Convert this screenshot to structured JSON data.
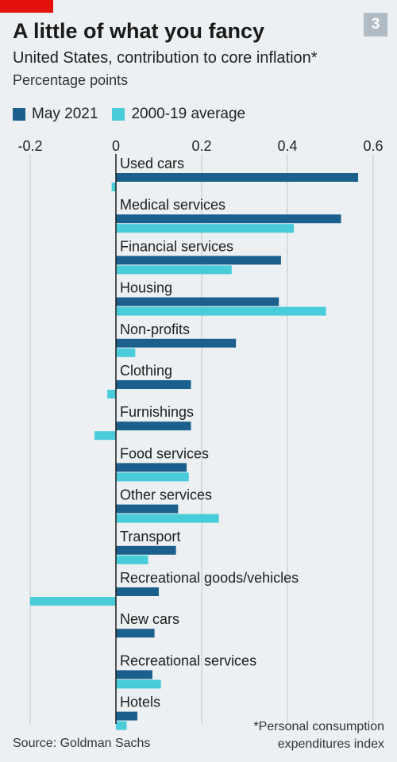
{
  "badge": "3",
  "colors": {
    "may2021": "#1b5f8c",
    "avg": "#49ccd9",
    "accent": "#e3120b",
    "grid": "#c6ced3"
  },
  "chart_data": {
    "type": "bar",
    "orientation": "horizontal",
    "title": "A little of what you fancy",
    "subtitle": "United States, contribution to core inflation*",
    "units": "Percentage points",
    "source": "Source: Goldman Sachs",
    "footnote_lines": [
      "*Personal consumption",
      "expenditures index"
    ],
    "xlim": [
      -0.2,
      0.6
    ],
    "ticks": [
      -0.2,
      0,
      0.2,
      0.4,
      0.6
    ],
    "tick_labels": [
      "-0.2",
      "0",
      "0.2",
      "0.4",
      "0.6"
    ],
    "legend_placement": "top-left",
    "grid": true,
    "categories": [
      "Used cars",
      "Medical services",
      "Financial services",
      "Housing",
      "Non-profits",
      "Clothing",
      "Furnishings",
      "Food services",
      "Other services",
      "Transport",
      "Recreational goods/vehicles",
      "New cars",
      "Recreational services",
      "Hotels"
    ],
    "series": [
      {
        "name": "May 2021",
        "values": [
          0.565,
          0.525,
          0.385,
          0.38,
          0.28,
          0.175,
          0.175,
          0.165,
          0.145,
          0.14,
          0.1,
          0.09,
          0.085,
          0.05
        ]
      },
      {
        "name": "2000-19 average",
        "values": [
          -0.01,
          0.415,
          0.27,
          0.49,
          0.045,
          -0.02,
          -0.05,
          0.17,
          0.24,
          0.075,
          -0.2,
          0.0,
          0.105,
          0.025
        ]
      }
    ]
  }
}
